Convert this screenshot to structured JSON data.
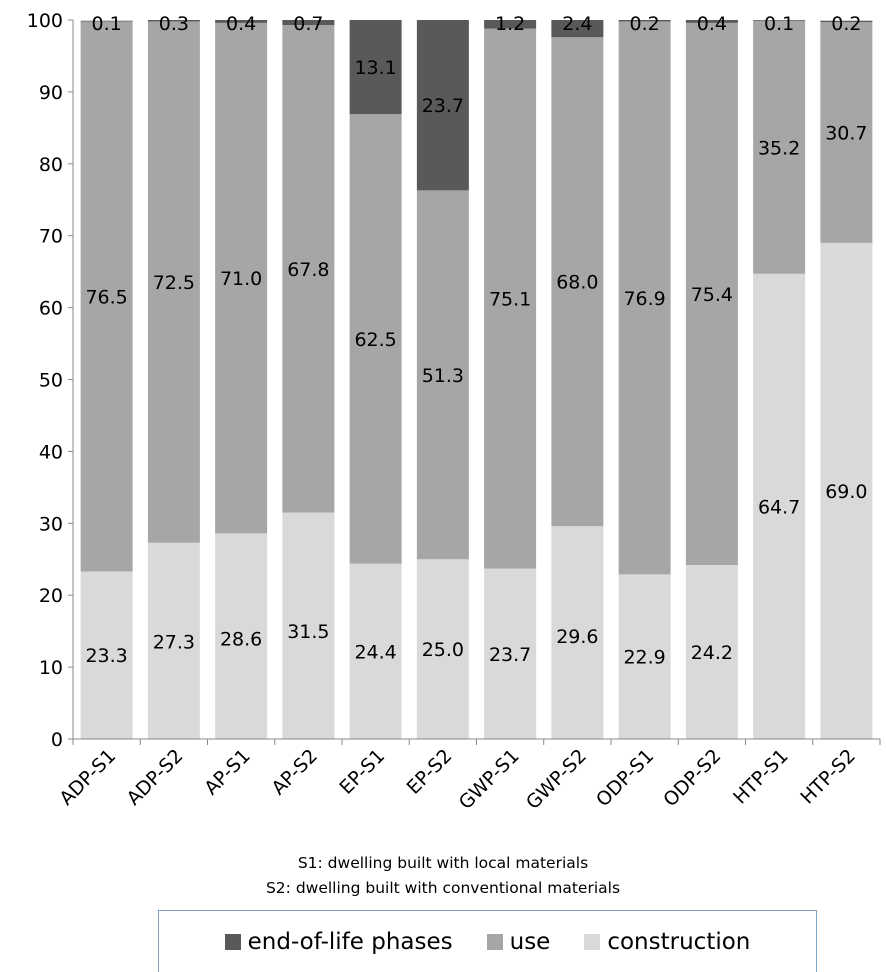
{
  "chart_data": {
    "type": "bar",
    "stacked": true,
    "categories": [
      "ADP-S1",
      "ADP-S2",
      "AP-S1",
      "AP-S2",
      "EP-S1",
      "EP-S2",
      "GWP-S1",
      "GWP-S2",
      "ODP-S1",
      "ODP-S2",
      "HTP-S1",
      "HTP-S2"
    ],
    "series": [
      {
        "name": "construction",
        "color": "#d9d9d9",
        "values": [
          23.3,
          27.3,
          28.6,
          31.5,
          24.4,
          25.0,
          23.7,
          29.6,
          22.9,
          24.2,
          64.7,
          69.0
        ]
      },
      {
        "name": "use",
        "color": "#a6a6a6",
        "values": [
          76.5,
          72.5,
          71.0,
          67.8,
          62.5,
          51.3,
          75.1,
          68.0,
          76.9,
          75.4,
          35.2,
          30.7
        ]
      },
      {
        "name": "end-of-life phases",
        "color": "#595959",
        "values": [
          0.1,
          0.3,
          0.4,
          0.7,
          13.1,
          23.7,
          1.2,
          2.4,
          0.2,
          0.4,
          0.1,
          0.2
        ]
      }
    ],
    "value_labels": {
      "construction": [
        "23.3",
        "27.3",
        "28.6",
        "31.5",
        "24.4",
        "25.0",
        "23.7",
        "29.6",
        "22.9",
        "24.2",
        "64.7",
        "69.0"
      ],
      "use": [
        "76.5",
        "72.5",
        "71.0",
        "67.8",
        "62.5",
        "51.3",
        "75.1",
        "68.0",
        "76.9",
        "75.4",
        "35.2",
        "30.7"
      ],
      "end-of-life phases": [
        "0.1",
        "0.3",
        "0.4",
        "0.7",
        "13.1",
        "23.7",
        "1.2",
        "2.4",
        "0.2",
        "0.4",
        "0.1",
        "0.2"
      ]
    },
    "ylim": [
      0,
      100
    ],
    "yticks": [
      "0",
      "10",
      "20",
      "30",
      "40",
      "50",
      "60",
      "70",
      "80",
      "90",
      "100"
    ],
    "grid": false,
    "legend_position": "bottom",
    "notes": [
      "S1: dwelling built with local materials",
      "S2: dwelling built with conventional materials"
    ],
    "legend": [
      "end-of-life phases",
      "use",
      "construction"
    ]
  }
}
